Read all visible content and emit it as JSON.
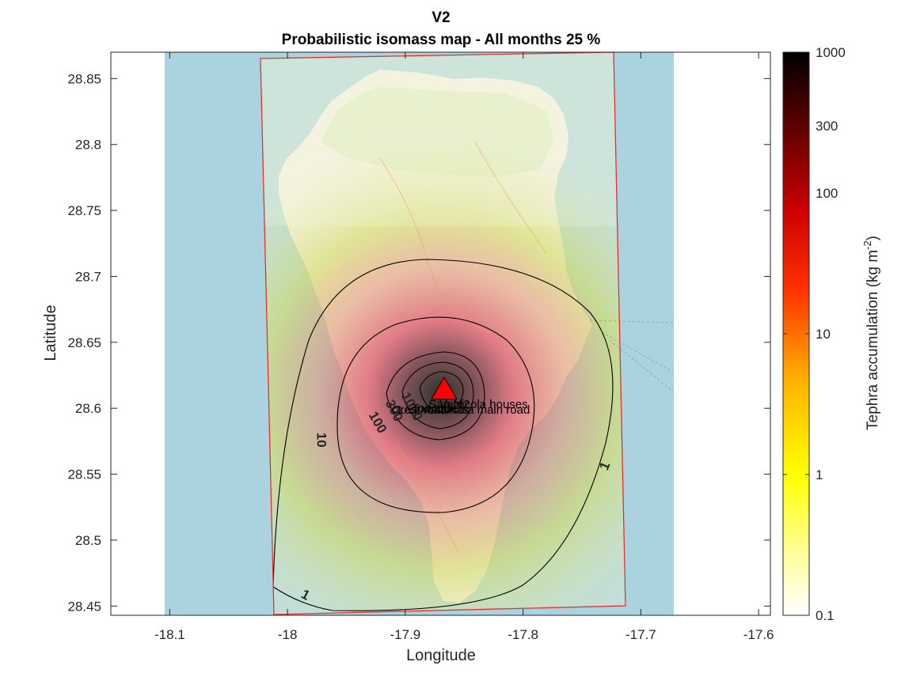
{
  "figure": {
    "title": "V2",
    "subtitle": "Probabilistic isomass map - All months 25 %",
    "xlabel": "Longitude",
    "ylabel": "Latitude"
  },
  "colors": {
    "sea": "#aad3df",
    "land": "#f2efe9",
    "domain_border": "#e8302a",
    "contour": "#000000",
    "vent_fill": "#ff0000"
  },
  "chart_data": {
    "type": "heatmap",
    "title": "V2",
    "subtitle": "Probabilistic isomass map - All months 25 %",
    "xlabel": "Longitude",
    "ylabel": "Latitude",
    "xlim": [
      -18.15,
      -17.59
    ],
    "ylim": [
      28.443,
      28.87
    ],
    "x_ticks": [
      -18.1,
      -18,
      -17.9,
      -17.8,
      -17.7,
      -17.6
    ],
    "x_tick_labels": [
      "-18.1",
      "-18",
      "-17.9",
      "-17.8",
      "-17.7",
      "-17.6"
    ],
    "y_ticks": [
      28.45,
      28.5,
      28.55,
      28.6,
      28.65,
      28.7,
      28.75,
      28.8,
      28.85
    ],
    "y_tick_labels": [
      "28.45",
      "28.5",
      "28.55",
      "28.6",
      "28.65",
      "28.7",
      "28.75",
      "28.8",
      "28.85"
    ],
    "vent": {
      "lon": -17.867,
      "lat": 28.614,
      "marker": "triangle"
    },
    "point_labels": [
      {
        "text": "Vent2",
        "lon": -17.858,
        "lat": 28.603
      },
      {
        "text": "San Nicola houses",
        "lon": -17.838,
        "lat": 28.603
      },
      {
        "text": "Crest road",
        "lon": -17.888,
        "lat": 28.599
      },
      {
        "text": "Las Manchas",
        "lon": -17.876,
        "lat": 28.599
      },
      {
        "text": "Todoque",
        "lon": -17.875,
        "lat": 28.6
      },
      {
        "text": "Nicola main road",
        "lon": -17.832,
        "lat": 28.599
      }
    ],
    "contours": [
      {
        "level": 1,
        "label": "1",
        "label_pos": [
          -17.73,
          28.556
        ],
        "label_rot": -68
      },
      {
        "level": 1,
        "label": "1",
        "label_pos": [
          -17.985,
          28.458
        ],
        "label_rot": 28
      },
      {
        "level": 10,
        "label": "10",
        "label_pos": [
          -17.972,
          28.576
        ],
        "label_rot": 90
      },
      {
        "level": 100,
        "label": "100",
        "label_pos": [
          -17.924,
          28.589
        ],
        "label_rot": 60
      },
      {
        "level": 300,
        "label": "300",
        "label_pos": [
          -17.91,
          28.598
        ],
        "label_rot": 62
      },
      {
        "level": 1000,
        "label": "1000",
        "label_pos": [
          -17.895,
          28.601
        ],
        "label_rot": 62
      }
    ],
    "colorbar": {
      "label": "Tephra accumulation (kg m",
      "label_superscript": "-2",
      "label_suffix": ")",
      "scale": "log",
      "range": [
        0.1,
        1000
      ],
      "ticks": [
        0.1,
        1,
        10,
        100,
        300,
        1000
      ],
      "tick_labels": [
        "0.1",
        "1",
        "10",
        "100",
        "300",
        "1000"
      ],
      "colormap": "hot_r"
    },
    "grid": false
  }
}
